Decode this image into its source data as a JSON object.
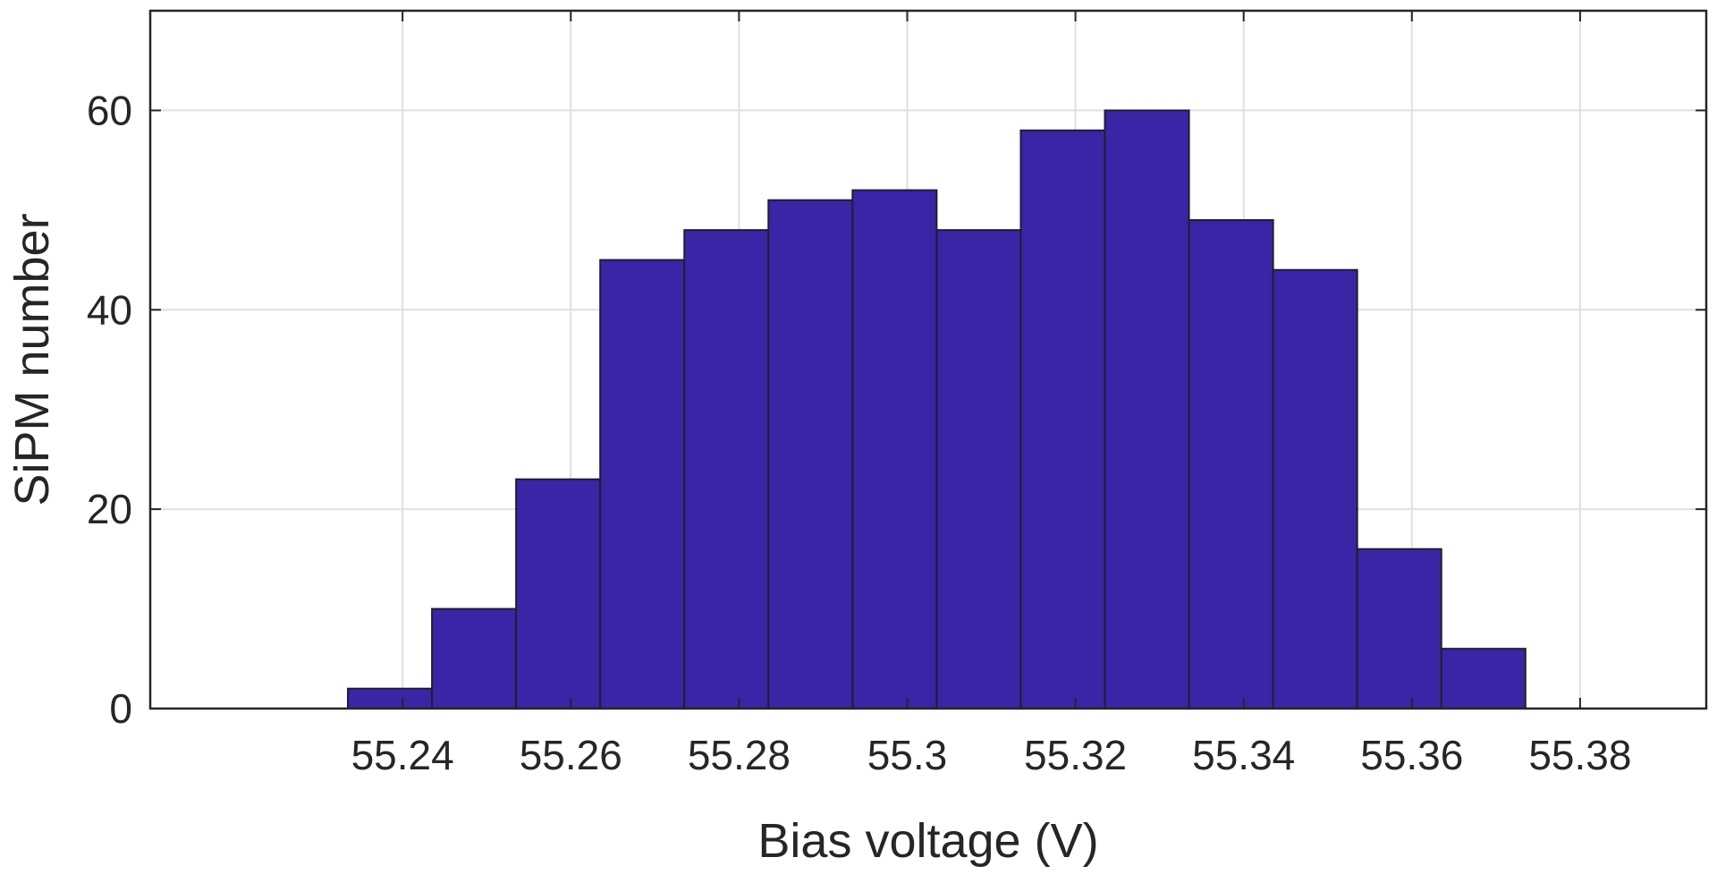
{
  "chart_data": {
    "type": "bar",
    "title": "",
    "xlabel": "Bias voltage (V)",
    "ylabel": "SiPM number",
    "xlim": [
      55.21,
      55.395
    ],
    "ylim": [
      0,
      70
    ],
    "bin_width": 0.01,
    "bins": [
      {
        "start": 55.2335,
        "end": 55.2435,
        "value": 2
      },
      {
        "start": 55.2435,
        "end": 55.2535,
        "value": 10
      },
      {
        "start": 55.2535,
        "end": 55.2635,
        "value": 23
      },
      {
        "start": 55.2635,
        "end": 55.2735,
        "value": 45
      },
      {
        "start": 55.2735,
        "end": 55.2835,
        "value": 48
      },
      {
        "start": 55.2835,
        "end": 55.2935,
        "value": 51
      },
      {
        "start": 55.2935,
        "end": 55.3035,
        "value": 52
      },
      {
        "start": 55.3035,
        "end": 55.3135,
        "value": 48
      },
      {
        "start": 55.3135,
        "end": 55.3235,
        "value": 58
      },
      {
        "start": 55.3235,
        "end": 55.3335,
        "value": 60
      },
      {
        "start": 55.3335,
        "end": 55.3435,
        "value": 49
      },
      {
        "start": 55.3435,
        "end": 55.3535,
        "value": 44
      },
      {
        "start": 55.3535,
        "end": 55.3635,
        "value": 16
      },
      {
        "start": 55.3635,
        "end": 55.3735,
        "value": 6
      }
    ],
    "x_ticks": [
      55.24,
      55.26,
      55.28,
      55.3,
      55.32,
      55.34,
      55.36,
      55.38
    ],
    "x_tick_labels": [
      "55.24",
      "55.26",
      "55.28",
      "55.3",
      "55.32",
      "55.34",
      "55.36",
      "55.38"
    ],
    "y_ticks": [
      0,
      20,
      40,
      60
    ],
    "y_tick_labels": [
      "0",
      "20",
      "40",
      "60"
    ],
    "grid": true,
    "legend": "none",
    "colors": {
      "bar_fill": "#3b24a5",
      "bar_edge": "#1f1f2e",
      "axis": "#262626",
      "grid": "#e0e0e0",
      "text": "#262626"
    }
  }
}
